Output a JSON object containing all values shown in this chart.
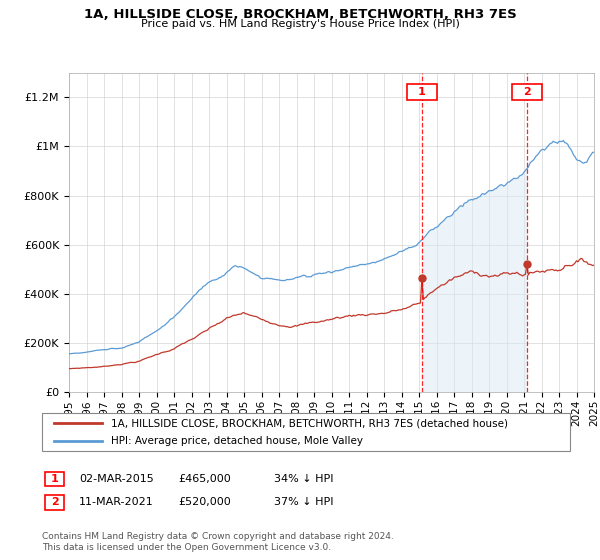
{
  "title": "1A, HILLSIDE CLOSE, BROCKHAM, BETCHWORTH, RH3 7ES",
  "subtitle": "Price paid vs. HM Land Registry's House Price Index (HPI)",
  "ylabel_ticks": [
    "£0",
    "£200K",
    "£400K",
    "£600K",
    "£800K",
    "£1M",
    "£1.2M"
  ],
  "ytick_values": [
    0,
    200000,
    400000,
    600000,
    800000,
    1000000,
    1200000
  ],
  "ylim": [
    0,
    1300000
  ],
  "hpi_color": "#5b9bd5",
  "hpi_fill_color": "#dae8f5",
  "price_color": "#c0392b",
  "marker1_idx": 242,
  "marker2_idx": 314,
  "legend_property": "1A, HILLSIDE CLOSE, BROCKHAM, BETCHWORTH, RH3 7ES (detached house)",
  "legend_hpi": "HPI: Average price, detached house, Mole Valley",
  "note1_date": "02-MAR-2015",
  "note1_price": "£465,000",
  "note1_pct": "34% ↓ HPI",
  "note2_date": "11-MAR-2021",
  "note2_price": "£520,000",
  "note2_pct": "37% ↓ HPI",
  "copyright": "Contains HM Land Registry data © Crown copyright and database right 2024.\nThis data is licensed under the Open Government Licence v3.0.",
  "background_color": "#ffffff",
  "grid_color": "#cccccc",
  "year_start": 1995,
  "year_end": 2025,
  "n_months": 361
}
